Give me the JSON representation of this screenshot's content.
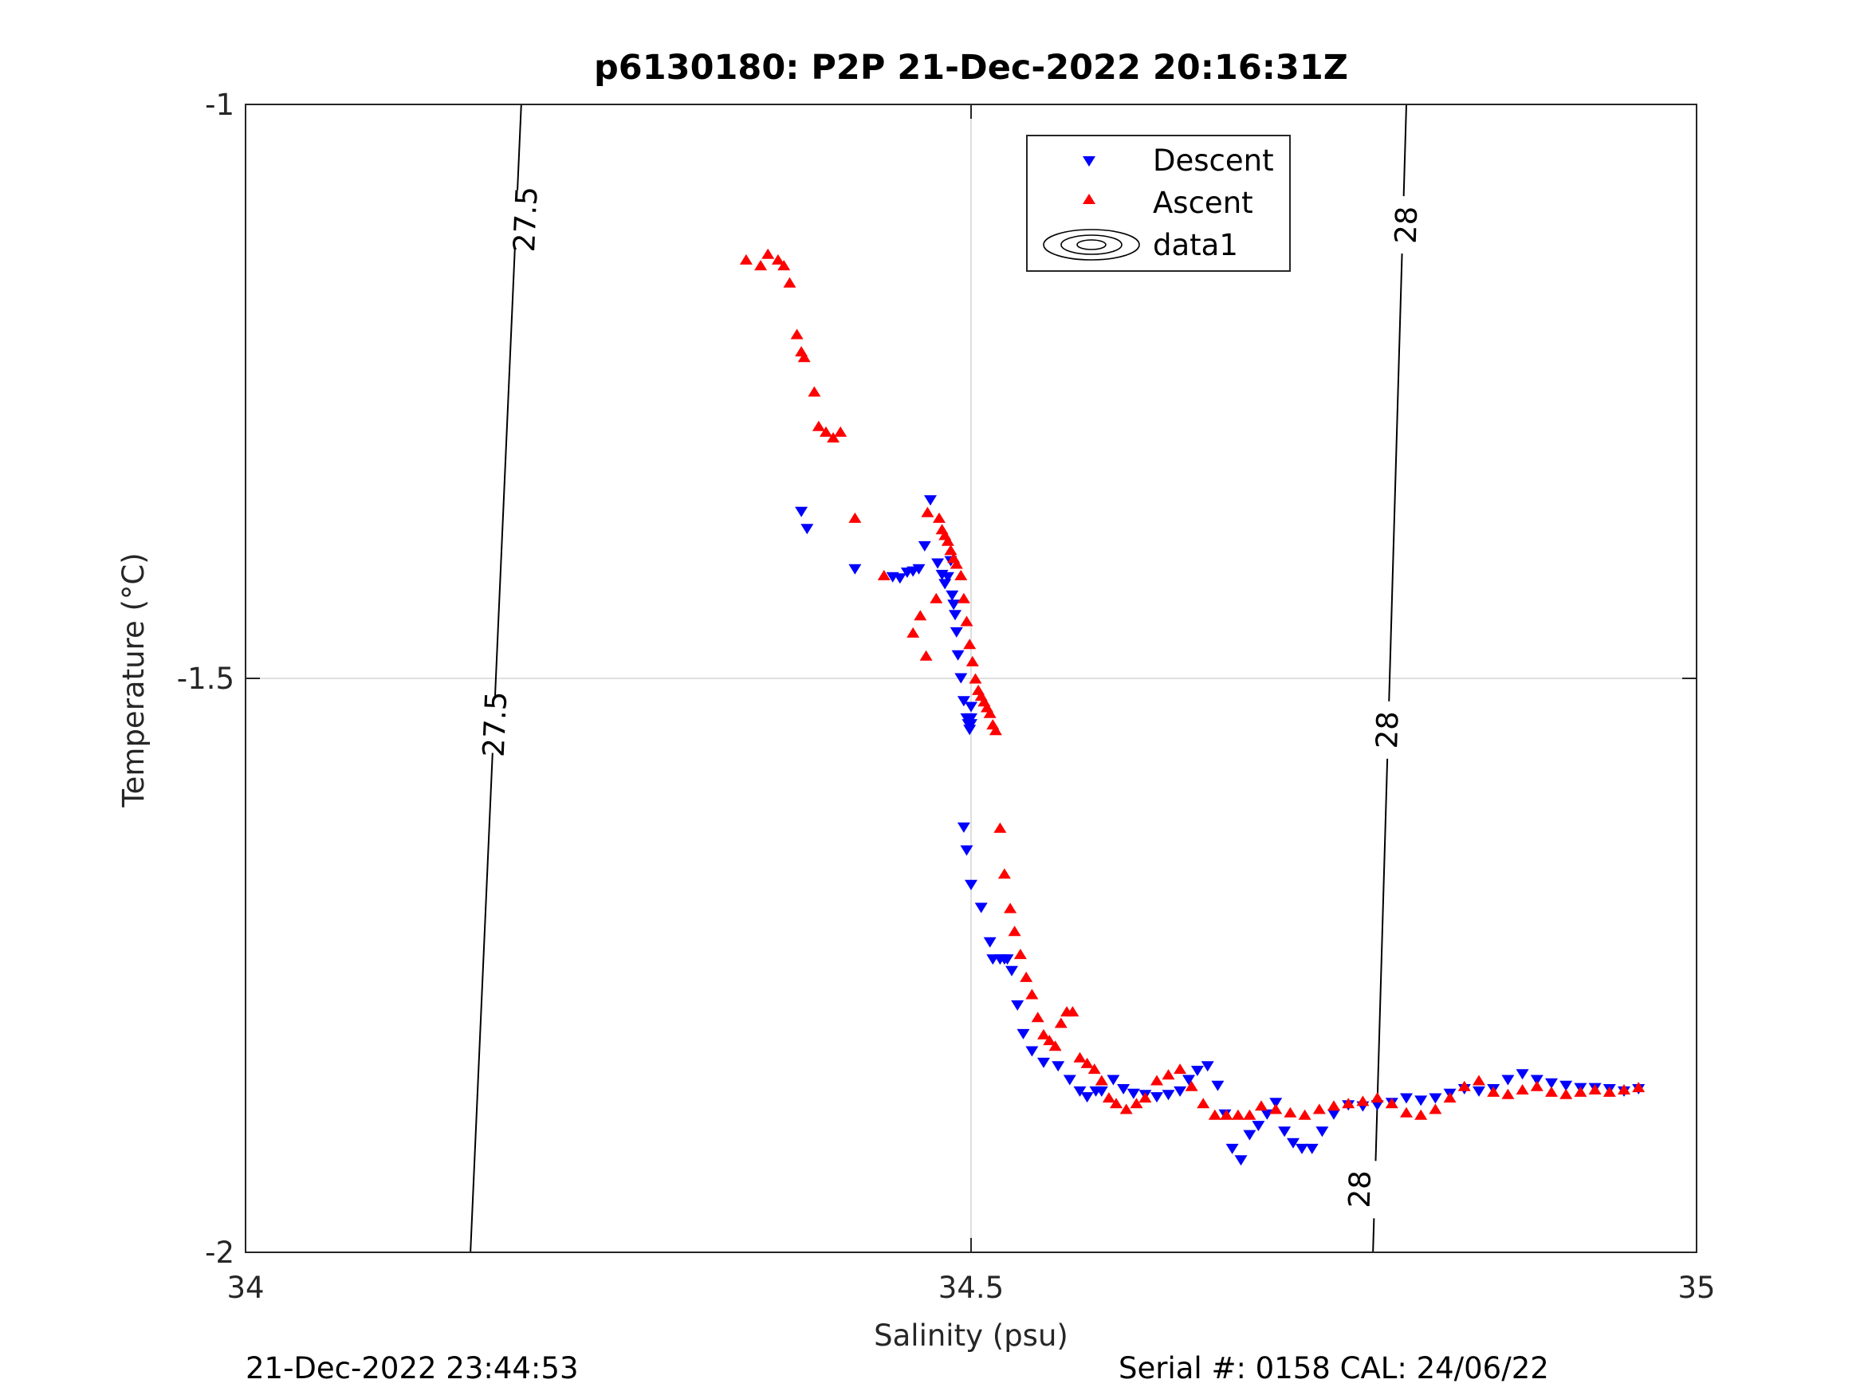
{
  "chart_data": {
    "type": "scatter",
    "title": "p6130180: P2P 21-Dec-2022 20:16:31Z",
    "xlabel": "Salinity (psu)",
    "ylabel": "Temperature (°C)",
    "xlim": [
      34,
      35
    ],
    "ylim": [
      -2,
      -1
    ],
    "xticks": [
      "34",
      "34.5",
      "35"
    ],
    "yticks": [
      "-1",
      "-1.5",
      "-2"
    ],
    "grid": true,
    "legend_position": "top-center",
    "legend": [
      "Descent",
      "Ascent",
      "data1"
    ],
    "series": [
      {
        "name": "Descent",
        "marker": "triangle-down",
        "color": "#0000ff",
        "x": [
          34.383,
          34.387,
          34.42,
          34.446,
          34.451,
          34.456,
          34.46,
          34.464,
          34.468,
          34.472,
          34.477,
          34.48,
          34.482,
          34.484,
          34.486,
          34.487,
          34.488,
          34.489,
          34.49,
          34.491,
          34.493,
          34.495,
          34.497,
          34.498,
          34.499,
          34.5,
          34.5,
          34.5,
          34.495,
          34.497,
          34.5,
          34.507,
          34.513,
          34.515,
          34.52,
          34.523,
          34.525,
          34.528,
          34.532,
          34.536,
          34.542,
          34.55,
          34.56,
          34.568,
          34.575,
          34.58,
          34.586,
          34.59,
          34.598,
          34.605,
          34.612,
          34.62,
          34.628,
          34.636,
          34.644,
          34.65,
          34.656,
          34.663,
          34.67,
          34.675,
          34.68,
          34.686,
          34.692,
          34.698,
          34.704,
          34.71,
          34.716,
          34.722,
          34.728,
          34.735,
          34.742,
          34.75,
          34.76,
          34.77,
          34.78,
          34.79,
          34.8,
          34.81,
          34.82,
          34.83,
          34.84,
          34.85,
          34.86,
          34.87,
          34.88,
          34.89,
          34.9,
          34.91,
          34.92,
          34.93,
          34.94,
          34.95,
          34.96
        ],
        "y": [
          -1.355,
          -1.37,
          -1.405,
          -1.412,
          -1.413,
          -1.408,
          -1.407,
          -1.405,
          -1.385,
          -1.345,
          -1.4,
          -1.41,
          -1.418,
          -1.412,
          -1.398,
          -1.428,
          -1.436,
          -1.445,
          -1.46,
          -1.48,
          -1.5,
          -1.52,
          -1.535,
          -1.54,
          -1.545,
          -1.54,
          -1.535,
          -1.525,
          -1.63,
          -1.65,
          -1.68,
          -1.7,
          -1.73,
          -1.745,
          -1.745,
          -1.745,
          -1.745,
          -1.755,
          -1.785,
          -1.81,
          -1.825,
          -1.835,
          -1.838,
          -1.85,
          -1.86,
          -1.865,
          -1.86,
          -1.86,
          -1.85,
          -1.858,
          -1.862,
          -1.863,
          -1.865,
          -1.863,
          -1.86,
          -1.85,
          -1.842,
          -1.838,
          -1.855,
          -1.88,
          -1.91,
          -1.92,
          -1.898,
          -1.89,
          -1.88,
          -1.87,
          -1.895,
          -1.905,
          -1.91,
          -1.91,
          -1.895,
          -1.88,
          -1.872,
          -1.873,
          -1.872,
          -1.87,
          -1.866,
          -1.868,
          -1.866,
          -1.862,
          -1.858,
          -1.86,
          -1.858,
          -1.85,
          -1.845,
          -1.85,
          -1.853,
          -1.855,
          -1.857,
          -1.857,
          -1.858,
          -1.86,
          -1.858
        ]
      },
      {
        "name": "Ascent",
        "marker": "triangle-up",
        "color": "#ff0000",
        "x": [
          34.345,
          34.355,
          34.36,
          34.367,
          34.371,
          34.375,
          34.38,
          34.383,
          34.385,
          34.392,
          34.395,
          34.4,
          34.405,
          34.41,
          34.42,
          34.44,
          34.46,
          34.465,
          34.469,
          34.476,
          34.47,
          34.478,
          34.48,
          34.482,
          34.484,
          34.486,
          34.488,
          34.49,
          34.493,
          34.495,
          34.497,
          34.499,
          34.501,
          34.503,
          34.505,
          34.507,
          34.509,
          34.511,
          34.513,
          34.515,
          34.517,
          34.52,
          34.523,
          34.527,
          34.53,
          34.534,
          34.538,
          34.542,
          34.546,
          34.55,
          34.554,
          34.558,
          34.562,
          34.566,
          34.57,
          34.575,
          34.58,
          34.585,
          34.59,
          34.595,
          34.6,
          34.607,
          34.614,
          34.62,
          34.628,
          34.636,
          34.644,
          34.652,
          34.66,
          34.668,
          34.676,
          34.684,
          34.692,
          34.7,
          34.71,
          34.72,
          34.73,
          34.74,
          34.75,
          34.76,
          34.77,
          34.78,
          34.79,
          34.8,
          34.81,
          34.82,
          34.83,
          34.84,
          34.85,
          34.86,
          34.87,
          34.88,
          34.89,
          34.9,
          34.91,
          34.92,
          34.93,
          34.94,
          34.95,
          34.96
        ],
        "y": [
          -1.135,
          -1.14,
          -1.13,
          -1.135,
          -1.14,
          -1.155,
          -1.2,
          -1.215,
          -1.22,
          -1.25,
          -1.28,
          -1.285,
          -1.29,
          -1.285,
          -1.36,
          -1.41,
          -1.46,
          -1.445,
          -1.48,
          -1.43,
          -1.355,
          -1.36,
          -1.37,
          -1.375,
          -1.38,
          -1.388,
          -1.395,
          -1.4,
          -1.41,
          -1.43,
          -1.45,
          -1.47,
          -1.485,
          -1.5,
          -1.51,
          -1.515,
          -1.52,
          -1.525,
          -1.53,
          -1.54,
          -1.545,
          -1.63,
          -1.67,
          -1.7,
          -1.72,
          -1.74,
          -1.76,
          -1.775,
          -1.795,
          -1.81,
          -1.815,
          -1.82,
          -1.8,
          -1.79,
          -1.79,
          -1.83,
          -1.835,
          -1.84,
          -1.85,
          -1.865,
          -1.87,
          -1.875,
          -1.87,
          -1.865,
          -1.85,
          -1.845,
          -1.84,
          -1.855,
          -1.87,
          -1.88,
          -1.88,
          -1.88,
          -1.88,
          -1.872,
          -1.875,
          -1.878,
          -1.88,
          -1.875,
          -1.872,
          -1.87,
          -1.868,
          -1.865,
          -1.87,
          -1.878,
          -1.88,
          -1.875,
          -1.865,
          -1.855,
          -1.85,
          -1.86,
          -1.862,
          -1.858,
          -1.855,
          -1.86,
          -1.862,
          -1.86,
          -1.858,
          -1.86,
          -1.858,
          -1.856
        ]
      }
    ],
    "contours": [
      {
        "label": "27.5",
        "x": [
          34.19,
          34.155
        ],
        "y": [
          -1,
          -2
        ],
        "label_positions": [
          [
            34.193,
            -1.1
          ],
          [
            34.172,
            -1.54
          ]
        ]
      },
      {
        "label": "28",
        "x": [
          34.8,
          34.777
        ],
        "y": [
          -1,
          -2
        ],
        "label_positions": [
          [
            34.8,
            -1.105
          ],
          [
            34.787,
            -1.545
          ],
          [
            34.768,
            -1.945
          ]
        ]
      }
    ]
  },
  "footer": {
    "left": "21-Dec-2022 23:44:53",
    "right": "Serial #: 0158  CAL: 24/06/22"
  }
}
